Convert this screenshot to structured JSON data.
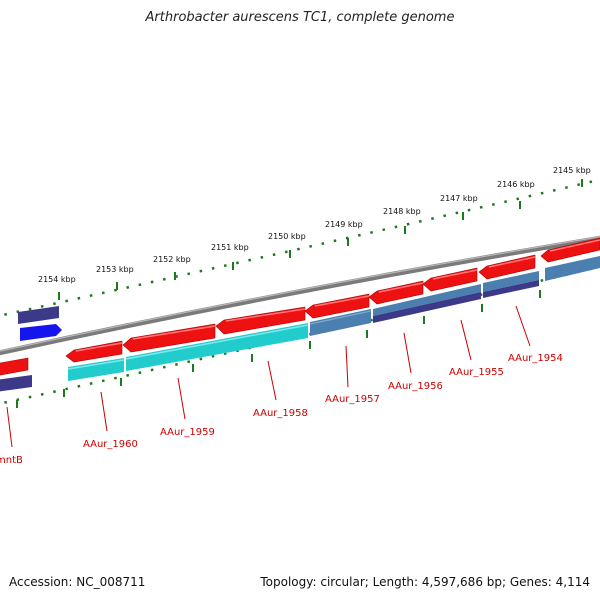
{
  "title": "Arthrobacter aurescens TC1, complete genome",
  "footer": {
    "accession": "Accession: NC_008711",
    "summary": "Topology: circular; Length: 4,597,686 bp; Genes: 4,114"
  },
  "kbp_labels": [
    "2145 kbp",
    "2146 kbp",
    "2147 kbp",
    "2148 kbp",
    "2149 kbp",
    "2150 kbp",
    "2151 kbp",
    "2152 kbp",
    "2153 kbp",
    "2154 kbp"
  ],
  "gene_labels": [
    "AAur_1954",
    "AAur_1955",
    "AAur_1956",
    "AAur_1957",
    "AAur_1958",
    "AAur_1959",
    "AAur_1960",
    "mntB"
  ],
  "colors": {
    "gene_red": "#ee1111",
    "cds_cyan": "#22cccc",
    "cds_steel": "#4a7fb0",
    "cds_indigo": "#3c3a88",
    "cds_blue": "#1515ee",
    "backbone": "#7a7a7a",
    "tick": "#1b7a1b",
    "label": "#cc0000"
  }
}
